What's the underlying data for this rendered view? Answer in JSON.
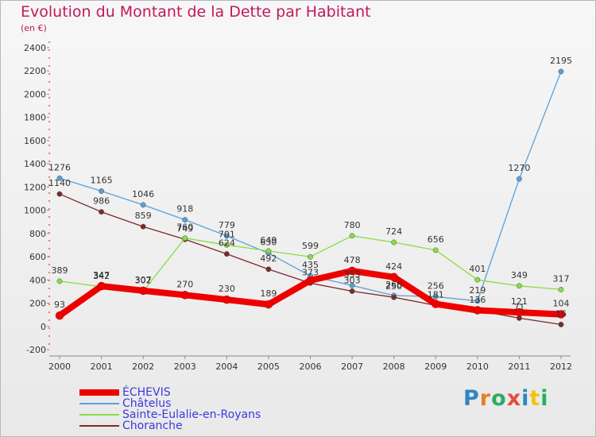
{
  "header": {
    "title": "Evolution du Montant de la Dette par Habitant",
    "subtitle": "(en €)"
  },
  "logo": {
    "letters": [
      "P",
      "r",
      "o",
      "x",
      "i",
      "t",
      "i"
    ],
    "colors": [
      "#2e86c1",
      "#e67e22",
      "#27ae60",
      "#e74c3c",
      "#2e86c1",
      "#f1c40f",
      "#27ae60"
    ]
  },
  "chart_data": {
    "type": "line",
    "x": [
      "2000",
      "2001",
      "2002",
      "2003",
      "2004",
      "2005",
      "2006",
      "2007",
      "2008",
      "2009",
      "2010",
      "2011",
      "2012"
    ],
    "ylim": [
      -200,
      2400
    ],
    "yticks": [
      "-200",
      "0",
      "200",
      "400",
      "600",
      "800",
      "1000",
      "1200",
      "1400",
      "1600",
      "1800",
      "2000",
      "2200",
      "2400"
    ],
    "grid": false,
    "legend_position": "bottom-left",
    "series": [
      {
        "name": "ÉCHEVIS",
        "color": "#ee0000",
        "width": 8,
        "values": [
          93,
          347,
          307,
          270,
          230,
          189,
          395,
          478,
          424,
          193,
          139,
          121,
          104
        ],
        "labels": [
          "93",
          "347",
          "307",
          "270",
          "230",
          "189",
          "",
          "478",
          "424",
          "",
          "",
          "121",
          "104"
        ]
      },
      {
        "name": "Châtelus",
        "color": "#5aa0d8",
        "width": 1.3,
        "values": [
          1276,
          1165,
          1046,
          918,
          779,
          630,
          435,
          353,
          266,
          256,
          219,
          1270,
          2195
        ],
        "labels": [
          "1276",
          "1165",
          "1046",
          "918",
          "779",
          "630",
          "435",
          "353",
          "266",
          "256",
          "219",
          "1270",
          "2195"
        ]
      },
      {
        "name": "Sainte-Eulalie-en-Royans",
        "color": "#88dd44",
        "width": 1.3,
        "values": [
          389,
          342,
          302,
          760,
          701,
          649,
          599,
          780,
          724,
          656,
          401,
          349,
          317
        ],
        "labels": [
          "389",
          "342",
          "302",
          "760",
          "701",
          "649",
          "599",
          "780",
          "724",
          "656",
          "401",
          "349",
          "317"
        ]
      },
      {
        "name": "Choranche",
        "color": "#7a2a2a",
        "width": 1.3,
        "values": [
          1140,
          986,
          859,
          749,
          624,
          492,
          373,
          303,
          250,
          181,
          136,
          71,
          16
        ],
        "labels": [
          "1140",
          "986",
          "859",
          "749",
          "624",
          "492",
          "373",
          "303",
          "250",
          "181",
          "136",
          "71",
          "16"
        ]
      }
    ]
  }
}
